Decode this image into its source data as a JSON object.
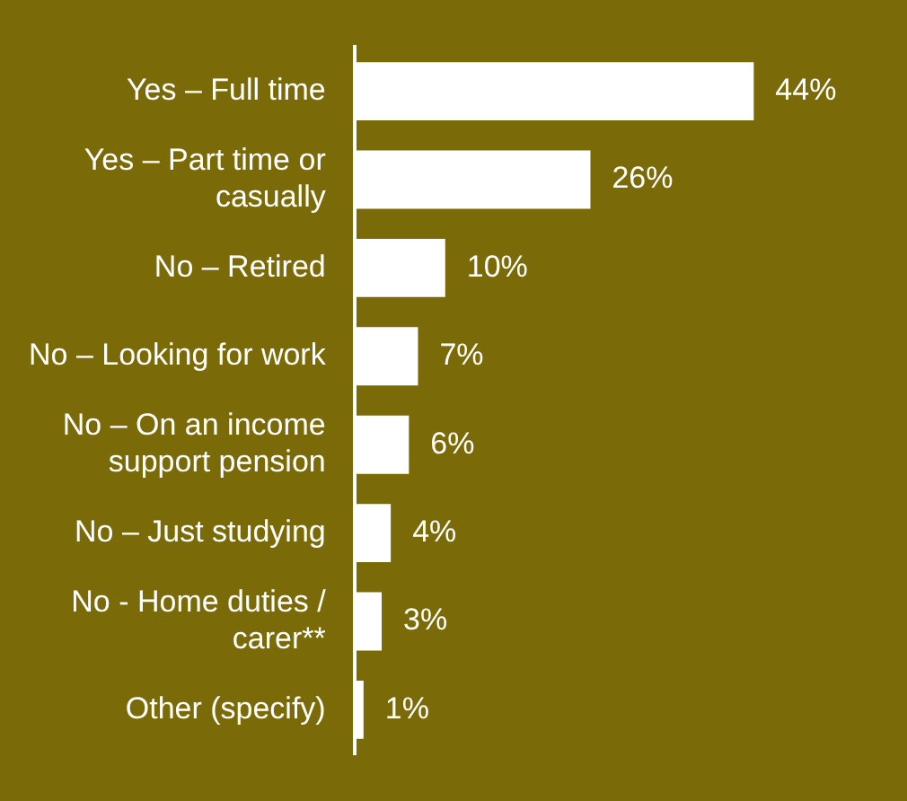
{
  "chart_data": {
    "type": "bar",
    "orientation": "horizontal",
    "categories": [
      "Yes – Full time",
      "Yes – Part time or casually",
      "No – Retired",
      "No – Looking for work",
      "No – On an income support pension",
      "No – Just studying",
      "No - Home duties / carer**",
      "Other (specify)"
    ],
    "values": [
      44,
      26,
      10,
      7,
      6,
      4,
      3,
      1
    ],
    "value_labels": [
      "44%",
      "26%",
      "10%",
      "7%",
      "6%",
      "4%",
      "3%",
      "1%"
    ],
    "color": "#ffffff"
  }
}
